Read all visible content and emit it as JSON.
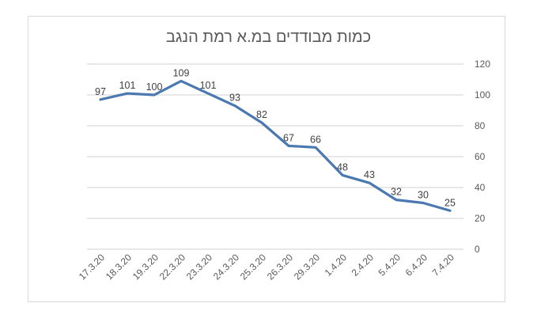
{
  "chart_data": {
    "type": "line",
    "title": "כמות מבודדים במ.א רמת הנגב",
    "xlabel": "",
    "ylabel": "",
    "categories": [
      "17.3.20",
      "18.3.20",
      "19.3.20",
      "22.3.20",
      "23.3.20",
      "24.3.20",
      "25.3.20",
      "26.3.20",
      "29.3.20",
      "1.4.20",
      "2.4.20",
      "5.4.20",
      "6.4.20",
      "7.4.20"
    ],
    "series": [
      {
        "name": "מבודדים",
        "values": [
          97,
          101,
          100,
          109,
          101,
          93,
          82,
          67,
          66,
          48,
          43,
          32,
          30,
          25
        ],
        "color": "#4a78b0"
      }
    ],
    "ylim": [
      0,
      120
    ],
    "yticks": [
      0,
      20,
      40,
      60,
      80,
      100,
      120
    ],
    "y_axis_position": "right",
    "grid": true,
    "legend": "none",
    "data_labels": true
  },
  "colors": {
    "line": "#4a78b0",
    "grid": "#d9d9d9",
    "text": "#595959"
  }
}
